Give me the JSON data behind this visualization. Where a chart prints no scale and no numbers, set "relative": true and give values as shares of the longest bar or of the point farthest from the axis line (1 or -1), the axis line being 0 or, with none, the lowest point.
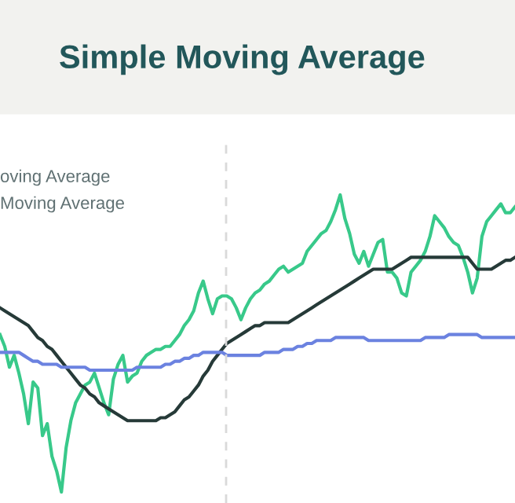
{
  "chart_data": {
    "type": "line",
    "title": "Simple Moving Average",
    "relative": true,
    "tick_labels": false,
    "annotations": [
      "oving Average",
      "Moving Average"
    ],
    "categories": [
      null,
      null,
      null,
      null,
      null,
      null,
      null,
      null,
      null,
      null,
      null,
      null,
      null,
      null,
      null,
      null,
      null,
      null,
      null,
      null,
      null,
      null,
      null,
      null,
      null,
      null,
      null,
      null,
      null,
      null,
      null,
      null,
      null,
      null,
      null,
      null,
      null,
      null,
      null,
      null,
      null,
      null,
      null,
      null,
      null,
      null,
      null,
      null,
      null,
      null,
      null,
      null,
      null,
      null,
      null,
      null,
      null,
      null,
      null,
      null,
      null,
      null,
      null,
      null,
      null,
      null,
      null,
      null,
      null,
      null,
      null,
      null,
      null,
      null,
      null,
      null,
      null,
      null,
      null,
      null,
      null,
      null,
      null,
      null,
      null,
      null,
      null,
      null,
      null,
      null,
      null,
      null,
      null,
      null,
      null,
      null,
      null,
      null,
      null,
      null,
      null,
      null,
      null,
      null,
      null,
      null,
      null,
      null,
      null,
      null
    ],
    "series": [
      {
        "color": "#38c98a",
        "values": [
          0.53,
          0.49,
          0.42,
          0.46,
          0.4,
          0.33,
          0.23,
          0.37,
          0.35,
          0.19,
          0.23,
          0.12,
          0.07,
          0.0,
          0.15,
          0.24,
          0.3,
          0.33,
          0.36,
          0.37,
          0.4,
          0.35,
          0.3,
          0.26,
          0.38,
          0.43,
          0.46,
          0.37,
          0.39,
          0.4,
          0.44,
          0.46,
          0.47,
          0.48,
          0.48,
          0.49,
          0.49,
          0.51,
          0.53,
          0.56,
          0.58,
          0.61,
          0.67,
          0.71,
          0.65,
          0.6,
          0.65,
          0.66,
          0.66,
          0.65,
          0.62,
          0.58,
          0.62,
          0.65,
          0.67,
          0.68,
          0.7,
          0.71,
          0.73,
          0.75,
          0.76,
          0.74,
          0.75,
          0.76,
          0.77,
          0.81,
          0.83,
          0.85,
          0.87,
          0.88,
          0.91,
          0.95,
          1.0,
          0.92,
          0.87,
          0.8,
          0.77,
          0.81,
          0.76,
          0.8,
          0.84,
          0.85,
          0.74,
          0.74,
          0.72,
          0.67,
          0.66,
          0.74,
          0.76,
          0.78,
          0.81,
          0.86,
          0.93,
          0.91,
          0.89,
          0.86,
          0.84,
          0.83,
          0.79,
          0.74,
          0.67,
          0.72,
          0.86,
          0.91,
          0.93,
          0.95,
          0.97,
          0.94,
          0.94,
          0.96
        ]
      },
      {
        "color": "#263a38",
        "values": [
          0.62,
          0.61,
          0.6,
          0.59,
          0.58,
          0.57,
          0.56,
          0.54,
          0.52,
          0.51,
          0.49,
          0.48,
          0.46,
          0.44,
          0.42,
          0.4,
          0.38,
          0.36,
          0.35,
          0.33,
          0.32,
          0.3,
          0.29,
          0.28,
          0.27,
          0.26,
          0.25,
          0.24,
          0.24,
          0.24,
          0.24,
          0.24,
          0.24,
          0.24,
          0.25,
          0.25,
          0.26,
          0.27,
          0.29,
          0.31,
          0.32,
          0.34,
          0.36,
          0.39,
          0.41,
          0.44,
          0.46,
          0.48,
          0.5,
          0.51,
          0.52,
          0.53,
          0.54,
          0.55,
          0.56,
          0.56,
          0.57,
          0.57,
          0.57,
          0.57,
          0.57,
          0.57,
          0.58,
          0.59,
          0.6,
          0.61,
          0.62,
          0.63,
          0.64,
          0.65,
          0.66,
          0.67,
          0.68,
          0.69,
          0.7,
          0.71,
          0.72,
          0.73,
          0.74,
          0.75,
          0.75,
          0.75,
          0.75,
          0.75,
          0.76,
          0.77,
          0.78,
          0.79,
          0.79,
          0.79,
          0.79,
          0.79,
          0.79,
          0.79,
          0.79,
          0.79,
          0.79,
          0.79,
          0.79,
          0.79,
          0.77,
          0.75,
          0.75,
          0.75,
          0.75,
          0.76,
          0.77,
          0.78,
          0.78,
          0.79
        ]
      },
      {
        "color": "#6b82e0",
        "values": [
          0.47,
          0.47,
          0.47,
          0.47,
          0.47,
          0.46,
          0.45,
          0.44,
          0.44,
          0.43,
          0.43,
          0.43,
          0.43,
          0.42,
          0.42,
          0.42,
          0.42,
          0.42,
          0.42,
          0.41,
          0.41,
          0.41,
          0.41,
          0.41,
          0.41,
          0.41,
          0.41,
          0.41,
          0.41,
          0.42,
          0.42,
          0.42,
          0.42,
          0.42,
          0.42,
          0.43,
          0.43,
          0.44,
          0.44,
          0.45,
          0.45,
          0.46,
          0.46,
          0.47,
          0.47,
          0.47,
          0.47,
          0.47,
          0.46,
          0.46,
          0.46,
          0.46,
          0.46,
          0.46,
          0.46,
          0.46,
          0.47,
          0.47,
          0.47,
          0.47,
          0.48,
          0.48,
          0.48,
          0.49,
          0.49,
          0.5,
          0.5,
          0.51,
          0.51,
          0.51,
          0.51,
          0.52,
          0.52,
          0.52,
          0.52,
          0.52,
          0.52,
          0.52,
          0.51,
          0.51,
          0.51,
          0.51,
          0.51,
          0.51,
          0.51,
          0.51,
          0.51,
          0.51,
          0.51,
          0.51,
          0.52,
          0.52,
          0.52,
          0.52,
          0.52,
          0.53,
          0.53,
          0.53,
          0.53,
          0.53,
          0.53,
          0.53,
          0.52,
          0.52,
          0.52,
          0.52,
          0.52,
          0.52,
          0.52,
          0.52
        ]
      }
    ]
  }
}
